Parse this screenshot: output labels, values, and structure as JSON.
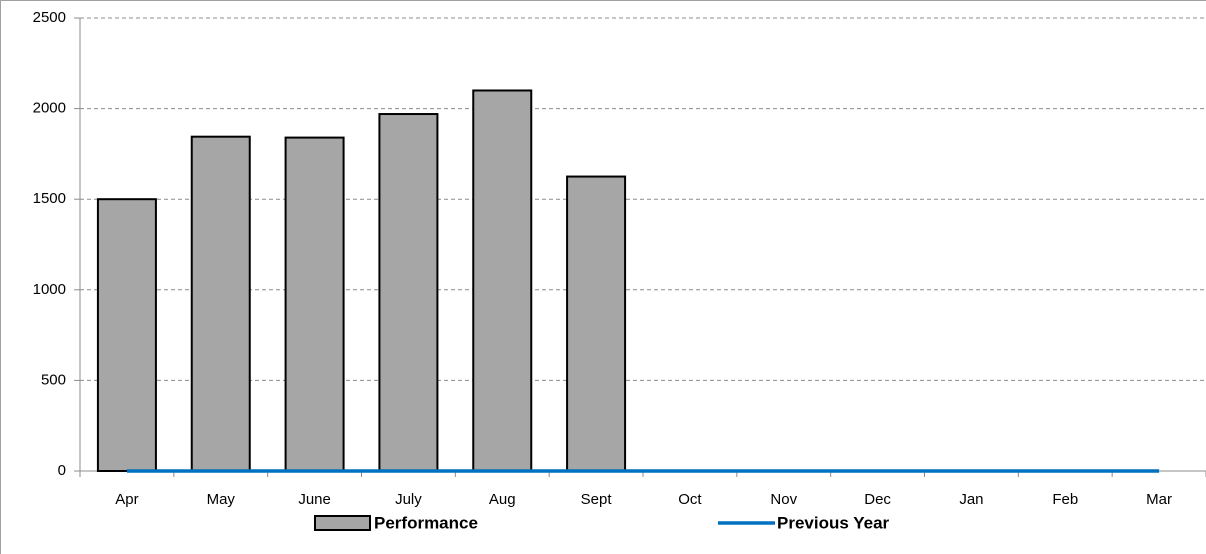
{
  "chart_data": {
    "type": "bar",
    "categories": [
      "Apr",
      "May",
      "June",
      "July",
      "Aug",
      "Sept",
      "Oct",
      "Nov",
      "Dec",
      "Jan",
      "Feb",
      "Mar"
    ],
    "series": [
      {
        "name": "Performance",
        "color": "#a6a6a6",
        "values": [
          1500,
          1845,
          1840,
          1970,
          2100,
          1625,
          null,
          null,
          null,
          null,
          null,
          null
        ]
      },
      {
        "name": "Previous Year",
        "color": "#0070c0",
        "type": "line",
        "values": [
          0,
          0,
          0,
          0,
          0,
          0,
          0,
          0,
          0,
          0,
          0,
          0
        ]
      }
    ],
    "ylim": [
      0,
      2500
    ],
    "yticks": [
      0,
      500,
      1000,
      1500,
      2000,
      2500
    ],
    "grid": true,
    "legend": "bottom"
  }
}
